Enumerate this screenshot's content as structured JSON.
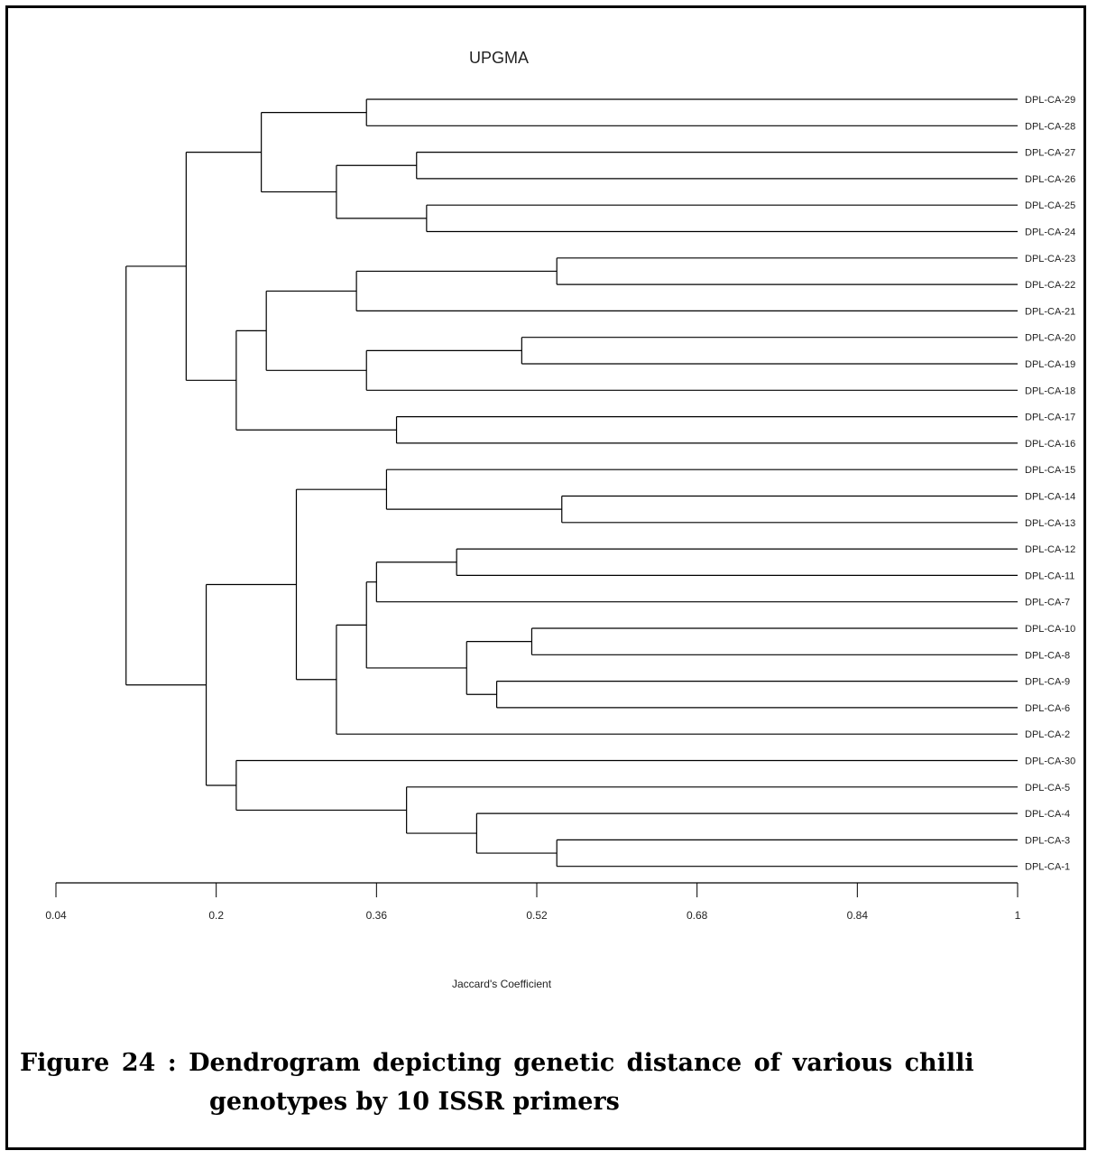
{
  "chart_data": {
    "type": "dendrogram",
    "title": "UPGMA",
    "xlabel": "Jaccard's Coefficient",
    "xlim": [
      0.04,
      1
    ],
    "x_ticks": [
      "0.04",
      "0.2",
      "0.36",
      "0.52",
      "0.68",
      "0.84",
      "1"
    ],
    "leaves": [
      "DPL-CA-29",
      "DPL-CA-28",
      "DPL-CA-27",
      "DPL-CA-26",
      "DPL-CA-25",
      "DPL-CA-24",
      "DPL-CA-23",
      "DPL-CA-22",
      "DPL-CA-21",
      "DPL-CA-20",
      "DPL-CA-19",
      "DPL-CA-18",
      "DPL-CA-17",
      "DPL-CA-16",
      "DPL-CA-15",
      "DPL-CA-14",
      "DPL-CA-13",
      "DPL-CA-12",
      "DPL-CA-11",
      "DPL-CA-7",
      "DPL-CA-10",
      "DPL-CA-8",
      "DPL-CA-9",
      "DPL-CA-6",
      "DPL-CA-2",
      "DPL-CA-30",
      "DPL-CA-5",
      "DPL-CA-4",
      "DPL-CA-3",
      "DPL-CA-1"
    ],
    "merges": [
      {
        "id": "n1",
        "children": [
          "DPL-CA-29",
          "DPL-CA-28"
        ],
        "height": 0.35
      },
      {
        "id": "n2",
        "children": [
          "DPL-CA-27",
          "DPL-CA-26"
        ],
        "height": 0.4
      },
      {
        "id": "n3",
        "children": [
          "DPL-CA-25",
          "DPL-CA-24"
        ],
        "height": 0.41
      },
      {
        "id": "n4",
        "children": [
          "n2",
          "n3"
        ],
        "height": 0.32
      },
      {
        "id": "n5",
        "children": [
          "n1",
          "n4"
        ],
        "height": 0.245
      },
      {
        "id": "n6",
        "children": [
          "DPL-CA-23",
          "DPL-CA-22"
        ],
        "height": 0.54
      },
      {
        "id": "n7",
        "children": [
          "n6",
          "DPL-CA-21"
        ],
        "height": 0.34
      },
      {
        "id": "n8",
        "children": [
          "DPL-CA-20",
          "DPL-CA-19"
        ],
        "height": 0.505
      },
      {
        "id": "n9",
        "children": [
          "n8",
          "DPL-CA-18"
        ],
        "height": 0.35
      },
      {
        "id": "n10",
        "children": [
          "n7",
          "n9"
        ],
        "height": 0.25
      },
      {
        "id": "n11",
        "children": [
          "DPL-CA-17",
          "DPL-CA-16"
        ],
        "height": 0.38
      },
      {
        "id": "n12",
        "children": [
          "n10",
          "n11"
        ],
        "height": 0.22
      },
      {
        "id": "n13",
        "children": [
          "n5",
          "n12"
        ],
        "height": 0.17
      },
      {
        "id": "n14",
        "children": [
          "DPL-CA-14",
          "DPL-CA-13"
        ],
        "height": 0.545
      },
      {
        "id": "n15",
        "children": [
          "DPL-CA-15",
          "n14"
        ],
        "height": 0.37
      },
      {
        "id": "n16",
        "children": [
          "DPL-CA-12",
          "DPL-CA-11"
        ],
        "height": 0.44
      },
      {
        "id": "n17",
        "children": [
          "n16",
          "DPL-CA-7"
        ],
        "height": 0.36
      },
      {
        "id": "n18",
        "children": [
          "DPL-CA-10",
          "DPL-CA-8"
        ],
        "height": 0.515
      },
      {
        "id": "n19",
        "children": [
          "DPL-CA-9",
          "DPL-CA-6"
        ],
        "height": 0.48
      },
      {
        "id": "n20",
        "children": [
          "n18",
          "n19"
        ],
        "height": 0.45
      },
      {
        "id": "n21",
        "children": [
          "n17",
          "n20"
        ],
        "height": 0.35
      },
      {
        "id": "n22",
        "children": [
          "n21",
          "DPL-CA-2"
        ],
        "height": 0.32
      },
      {
        "id": "n23",
        "children": [
          "n15",
          "n22"
        ],
        "height": 0.28
      },
      {
        "id": "n24",
        "children": [
          "DPL-CA-3",
          "DPL-CA-1"
        ],
        "height": 0.54
      },
      {
        "id": "n25",
        "children": [
          "DPL-CA-4",
          "n24"
        ],
        "height": 0.46
      },
      {
        "id": "n26",
        "children": [
          "DPL-CA-5",
          "n25"
        ],
        "height": 0.39
      },
      {
        "id": "n27",
        "children": [
          "DPL-CA-30",
          "n26"
        ],
        "height": 0.22
      },
      {
        "id": "n28",
        "children": [
          "n23",
          "n27"
        ],
        "height": 0.19
      },
      {
        "id": "n29",
        "children": [
          "n13",
          "n28"
        ],
        "height": 0.11
      }
    ]
  },
  "caption": {
    "line1": "Figure 24 : Dendrogram depicting genetic distance of various   chilli",
    "line2": "genotypes by 10 ISSR primers"
  }
}
